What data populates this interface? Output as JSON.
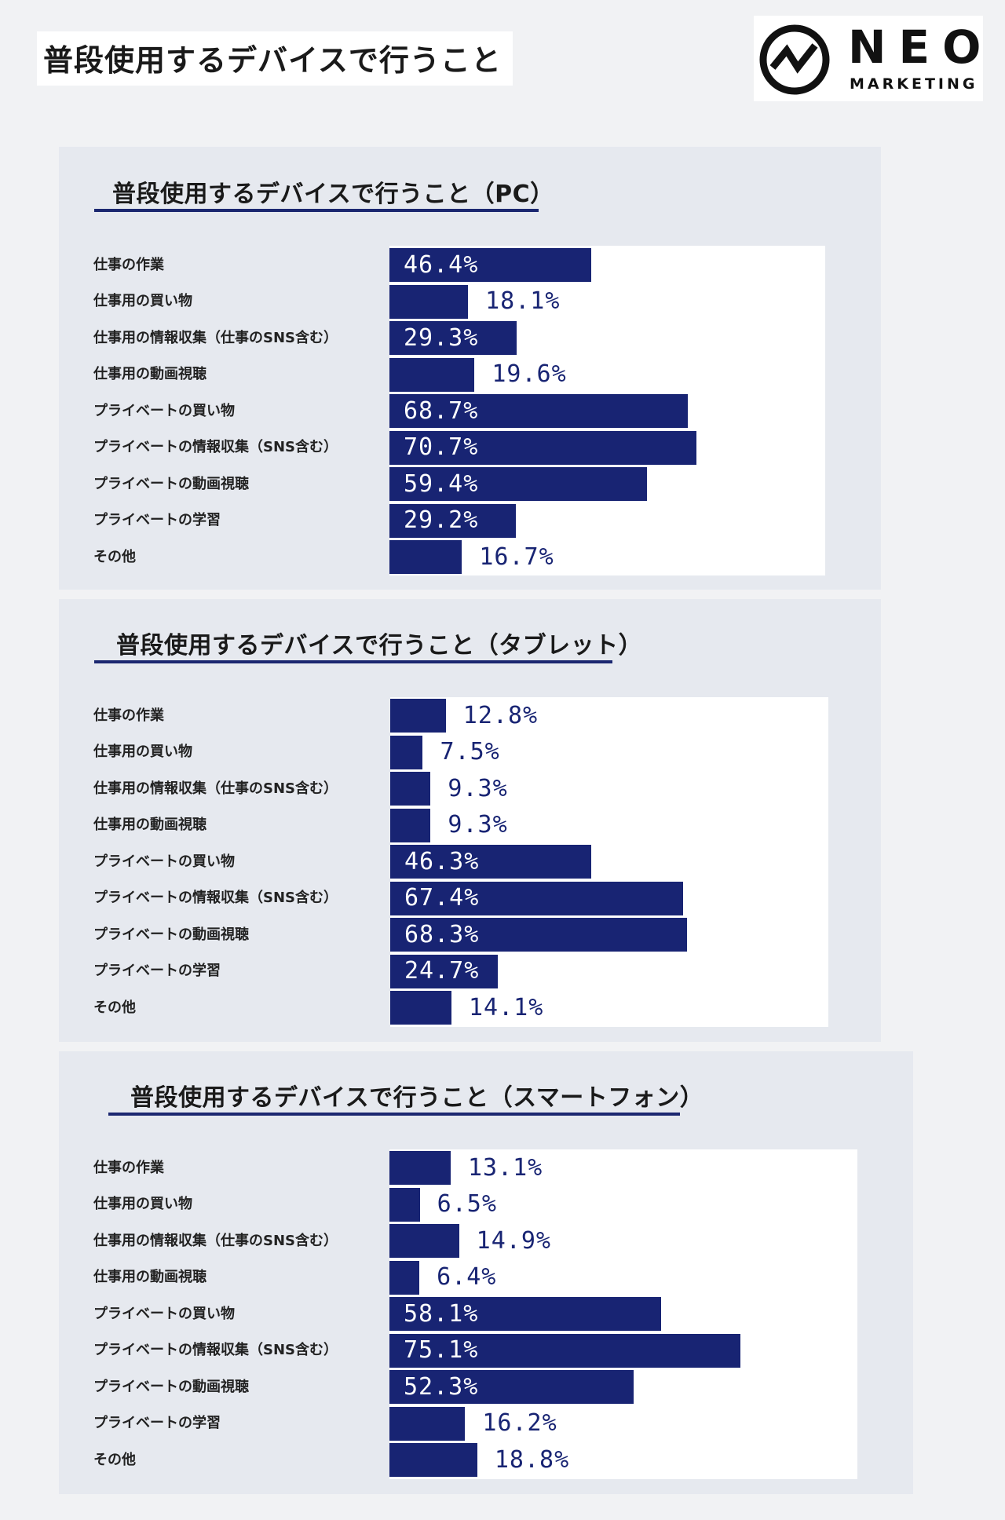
{
  "page": {
    "title": "普段使用するデバイスで行うこと"
  },
  "logo": {
    "name": "NEO",
    "sub": "MARKETING"
  },
  "chart_data": [
    {
      "type": "bar",
      "orientation": "horizontal",
      "title": "普段使用するデバイスで行うこと（PC）",
      "categories": [
        "仕事の作業",
        "仕事用の買い物",
        "仕事用の情報収集（仕事のSNS含む）",
        "仕事用の動画視聴",
        "プライベートの買い物",
        "プライベートの情報収集（SNS含む）",
        "プライベートの動画視聴",
        "プライベートの学習",
        "その他"
      ],
      "values": [
        46.4,
        18.1,
        29.3,
        19.6,
        68.7,
        70.7,
        59.4,
        29.2,
        16.7
      ],
      "labels": [
        "46.4%",
        "18.1%",
        "29.3%",
        "19.6%",
        "68.7%",
        "70.7%",
        "59.4%",
        "29.2%",
        "16.7%"
      ],
      "unit": "%",
      "bar_color": "#182473"
    },
    {
      "type": "bar",
      "orientation": "horizontal",
      "title": "普段使用するデバイスで行うこと（タブレット）",
      "categories": [
        "仕事の作業",
        "仕事用の買い物",
        "仕事用の情報収集（仕事のSNS含む）",
        "仕事用の動画視聴",
        "プライベートの買い物",
        "プライベートの情報収集（SNS含む）",
        "プライベートの動画視聴",
        "プライベートの学習",
        "その他"
      ],
      "values": [
        12.8,
        7.5,
        9.3,
        9.3,
        46.3,
        67.4,
        68.3,
        24.7,
        14.1
      ],
      "labels": [
        "12.8%",
        "7.5%",
        "9.3%",
        "9.3%",
        "46.3%",
        "67.4%",
        "68.3%",
        "24.7%",
        "14.1%"
      ],
      "unit": "%",
      "bar_color": "#182473"
    },
    {
      "type": "bar",
      "orientation": "horizontal",
      "title": "普段使用するデバイスで行うこと（スマートフォン）",
      "categories": [
        "仕事の作業",
        "仕事用の買い物",
        "仕事用の情報収集（仕事のSNS含む）",
        "仕事用の動画視聴",
        "プライベートの買い物",
        "プライベートの情報収集（SNS含む）",
        "プライベートの動画視聴",
        "プライベートの学習",
        "その他"
      ],
      "values": [
        13.1,
        6.5,
        14.9,
        6.4,
        58.1,
        75.1,
        52.3,
        16.2,
        18.8
      ],
      "labels": [
        "13.1%",
        "6.5%",
        "14.9%",
        "6.4%",
        "58.1%",
        "75.1%",
        "52.3%",
        "16.2%",
        "18.8%"
      ],
      "unit": "%",
      "bar_color": "#182473"
    }
  ]
}
